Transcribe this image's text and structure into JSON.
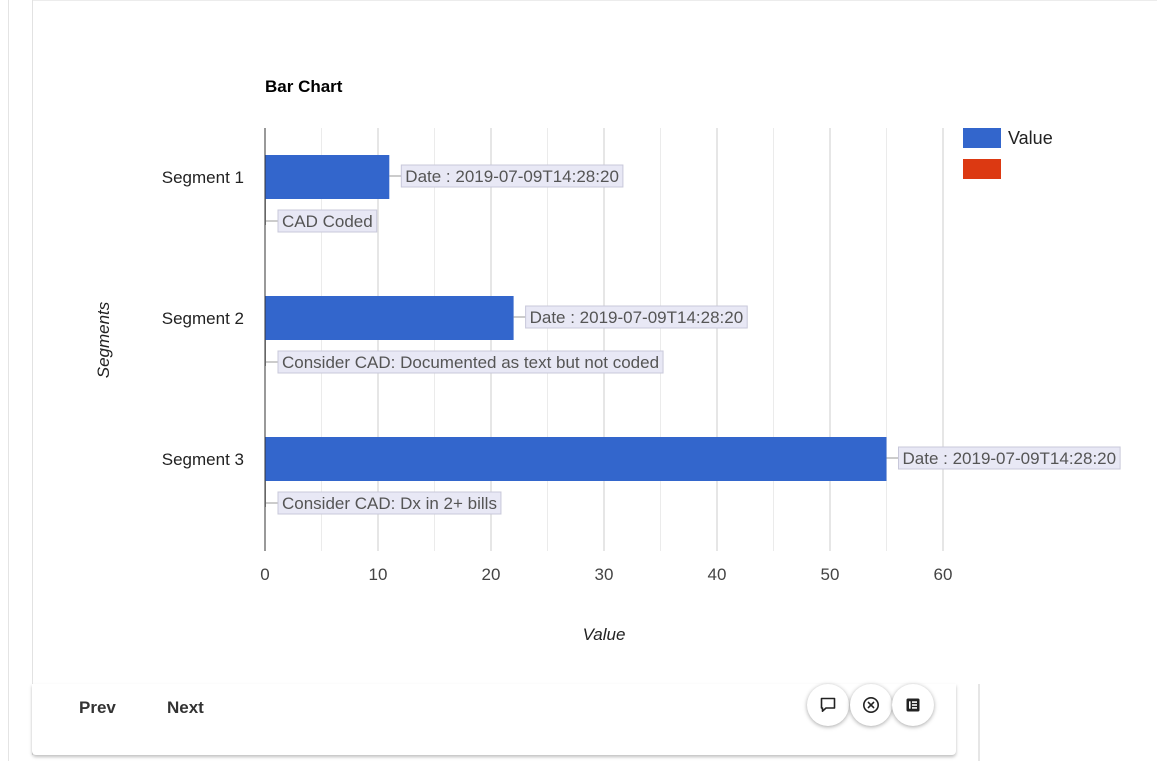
{
  "chart_data": {
    "type": "bar",
    "orientation": "horizontal",
    "title": "Bar Chart",
    "xlabel": "Value",
    "ylabel": "Segments",
    "categories": [
      "Segment 1",
      "Segment 2",
      "Segment 3"
    ],
    "series": [
      {
        "name": "Value",
        "color": "#3366cc",
        "values": [
          11,
          22,
          55
        ]
      },
      {
        "name": "",
        "color": "#dc3912",
        "values": [
          0,
          0,
          0
        ]
      }
    ],
    "xlim": [
      0,
      60
    ],
    "xticks": [
      0,
      10,
      20,
      30,
      40,
      50,
      60
    ],
    "grid": true,
    "legend_position": "top-right",
    "annotations": [
      {
        "segment": "Segment 1",
        "bar_label": "Date : 2019-07-09T14:28:20",
        "note": "CAD Coded"
      },
      {
        "segment": "Segment 2",
        "bar_label": "Date : 2019-07-09T14:28:20",
        "note": "Consider CAD: Documented as text but not coded"
      },
      {
        "segment": "Segment 3",
        "bar_label": "Date : 2019-07-09T14:28:20",
        "note": "Consider CAD: Dx in 2+ bills"
      }
    ]
  },
  "nav": {
    "prev_label": "Prev",
    "next_label": "Next"
  },
  "actions": {
    "comment_icon": "comment-icon",
    "close_icon": "close-circle-icon",
    "details_icon": "details-list-icon"
  }
}
